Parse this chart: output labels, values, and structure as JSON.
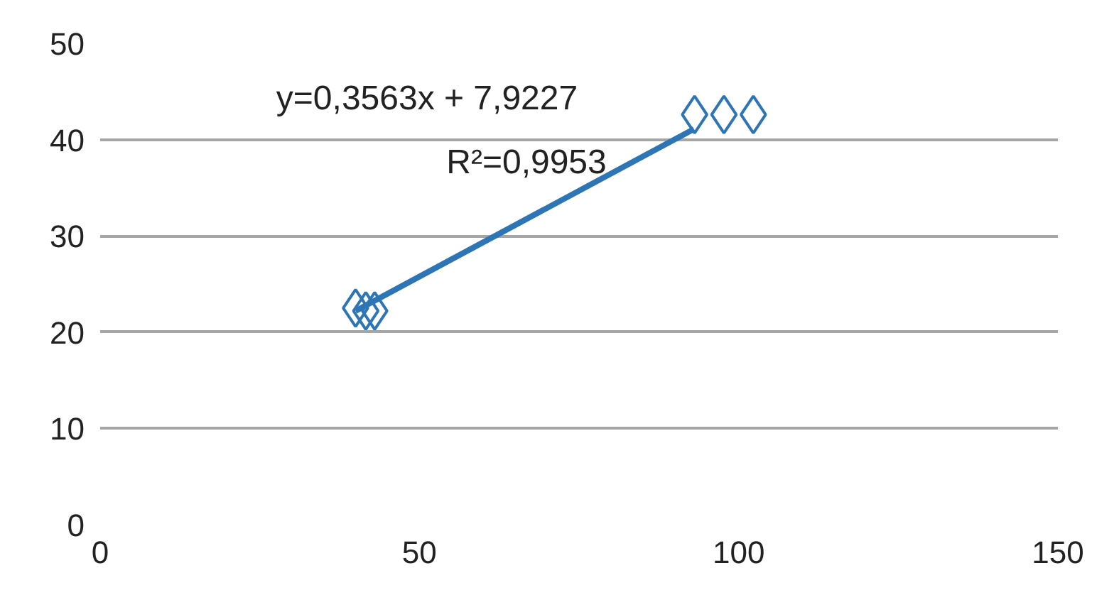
{
  "chart_data": {
    "type": "scatter",
    "series": [
      {
        "color": "#2e75b6",
        "x": [
          40,
          41.6,
          43,
          93.1,
          97.7,
          102.3
        ],
        "values": [
          22.5,
          22.2,
          22.2,
          42.6,
          42.6,
          42.6
        ],
        "marker": "diamond"
      },
      {
        "type": "line",
        "color": "#2e75b6",
        "x": [
          40,
          93
        ],
        "values": [
          22.2,
          41.1
        ],
        "marker": "none"
      }
    ],
    "annotations": [
      "y=0,3563x + 7,9227",
      "R²=0,9953"
    ],
    "xlim": [
      0,
      150
    ],
    "xticks": [
      0,
      50,
      100,
      150
    ],
    "ylim": [
      0,
      50
    ],
    "yticks": [
      0,
      10,
      20,
      30,
      40,
      50
    ],
    "grid": "y"
  }
}
